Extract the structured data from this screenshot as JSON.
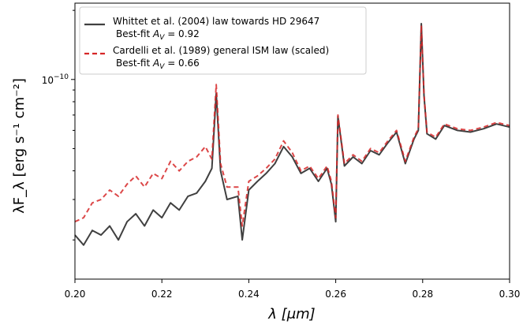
{
  "chart_data": {
    "type": "line",
    "title": "",
    "xlabel": "λ [μm]",
    "ylabel": "λF_λ [erg s⁻¹ cm⁻²]",
    "xlim": [
      0.2,
      0.3
    ],
    "ylim": [
      1.35e-11,
      2.15e-10
    ],
    "yscale": "log",
    "grid": false,
    "legend_position": "top-left",
    "x_ticks": [
      "0.20",
      "0.22",
      "0.24",
      "0.26",
      "0.28",
      "0.30"
    ],
    "y_ticks": [
      {
        "value": 1e-10,
        "base": "10",
        "exp": "−10"
      }
    ],
    "series": [
      {
        "name": "Whittet et al. (2004) law towards HD 29647",
        "note": "Best-fit A_V = 0.92",
        "note_prefix": "Best-fit ",
        "note_sym": "A",
        "note_sub": "V",
        "note_suffix": " = 0.92",
        "color": "#404040",
        "style": "solid",
        "x": [
          0.2,
          0.202,
          0.204,
          0.206,
          0.208,
          0.21,
          0.212,
          0.214,
          0.216,
          0.218,
          0.22,
          0.222,
          0.224,
          0.226,
          0.228,
          0.23,
          0.2315,
          0.2325,
          0.2335,
          0.235,
          0.2375,
          0.2385,
          0.24,
          0.242,
          0.244,
          0.246,
          0.248,
          0.25,
          0.252,
          0.254,
          0.256,
          0.258,
          0.259,
          0.26,
          0.2605,
          0.262,
          0.264,
          0.266,
          0.268,
          0.27,
          0.272,
          0.274,
          0.276,
          0.278,
          0.279,
          0.2797,
          0.2803,
          0.281,
          0.283,
          0.285,
          0.288,
          0.291,
          0.294,
          0.297,
          0.3
        ],
        "y": [
          2.1e-11,
          1.9e-11,
          2.2e-11,
          2.1e-11,
          2.3e-11,
          2e-11,
          2.4e-11,
          2.6e-11,
          2.3e-11,
          2.7e-11,
          2.5e-11,
          2.9e-11,
          2.7e-11,
          3.1e-11,
          3.2e-11,
          3.6e-11,
          4.1e-11,
          8.7e-11,
          4e-11,
          3e-11,
          3.1e-11,
          2e-11,
          3.3e-11,
          3.6e-11,
          3.9e-11,
          4.3e-11,
          5.1e-11,
          4.6e-11,
          3.9e-11,
          4.1e-11,
          3.6e-11,
          4.1e-11,
          3.5e-11,
          2.4e-11,
          6.9e-11,
          4.2e-11,
          4.6e-11,
          4.3e-11,
          4.9e-11,
          4.7e-11,
          5.3e-11,
          5.9e-11,
          4.3e-11,
          5.5e-11,
          6e-11,
          1.75e-10,
          8.5e-11,
          5.8e-11,
          5.5e-11,
          6.3e-11,
          6e-11,
          5.9e-11,
          6.1e-11,
          6.4e-11,
          6.2e-11
        ]
      },
      {
        "name": "Cardelli et al. (1989) general ISM law (scaled)",
        "note": "Best-fit A_V = 0.66",
        "note_prefix": "Best-fit ",
        "note_sym": "A",
        "note_sub": "V",
        "note_suffix": " = 0.66",
        "color": "#d62728",
        "style": "dashed",
        "x": [
          0.2,
          0.202,
          0.204,
          0.206,
          0.208,
          0.21,
          0.212,
          0.214,
          0.216,
          0.218,
          0.22,
          0.222,
          0.224,
          0.226,
          0.228,
          0.23,
          0.2315,
          0.2325,
          0.2335,
          0.235,
          0.2375,
          0.2385,
          0.24,
          0.242,
          0.244,
          0.246,
          0.248,
          0.25,
          0.252,
          0.254,
          0.256,
          0.258,
          0.259,
          0.26,
          0.2605,
          0.262,
          0.264,
          0.266,
          0.268,
          0.27,
          0.272,
          0.274,
          0.276,
          0.278,
          0.279,
          0.2797,
          0.2803,
          0.281,
          0.283,
          0.285,
          0.288,
          0.291,
          0.294,
          0.297,
          0.3
        ],
        "y": [
          2.4e-11,
          2.5e-11,
          2.9e-11,
          3e-11,
          3.3e-11,
          3.1e-11,
          3.5e-11,
          3.8e-11,
          3.4e-11,
          3.9e-11,
          3.7e-11,
          4.4e-11,
          4e-11,
          4.4e-11,
          4.6e-11,
          5.1e-11,
          4.5e-11,
          9.5e-11,
          4.3e-11,
          3.4e-11,
          3.4e-11,
          2.3e-11,
          3.6e-11,
          3.8e-11,
          4.1e-11,
          4.5e-11,
          5.4e-11,
          4.8e-11,
          4e-11,
          4.2e-11,
          3.7e-11,
          4.2e-11,
          3.6e-11,
          2.5e-11,
          7e-11,
          4.3e-11,
          4.7e-11,
          4.4e-11,
          5e-11,
          4.8e-11,
          5.4e-11,
          6e-11,
          4.4e-11,
          5.6e-11,
          6.1e-11,
          1.72e-10,
          8.6e-11,
          5.9e-11,
          5.6e-11,
          6.4e-11,
          6.1e-11,
          6e-11,
          6.2e-11,
          6.5e-11,
          6.3e-11
        ]
      }
    ]
  }
}
